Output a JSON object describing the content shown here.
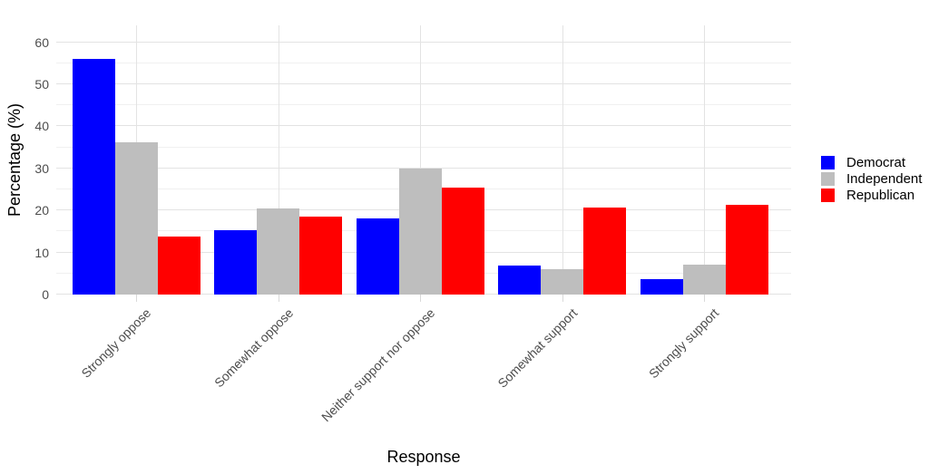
{
  "chart_data": {
    "type": "bar",
    "title": "",
    "xlabel": "Response",
    "ylabel": "Percentage (%)",
    "categories": [
      "Strongly oppose",
      "Somewhat oppose",
      "Neither support nor oppose",
      "Somewhat support",
      "Strongly support"
    ],
    "series": [
      {
        "name": "Democrat",
        "color": "#0000ff",
        "values": [
          56.1,
          15.3,
          18.0,
          6.9,
          3.7
        ]
      },
      {
        "name": "Independent",
        "color": "#bebebe",
        "values": [
          36.3,
          20.5,
          29.9,
          6.0,
          7.1
        ]
      },
      {
        "name": "Republican",
        "color": "#ff0000",
        "values": [
          13.7,
          18.6,
          25.5,
          20.7,
          21.4
        ]
      }
    ],
    "y_ticks": [
      0,
      10,
      20,
      30,
      40,
      50,
      60
    ],
    "y_minor_ticks": [
      5,
      15,
      25,
      35,
      45,
      55
    ],
    "ylim": [
      0,
      64
    ],
    "grid": "major+minor",
    "legend_position": "right"
  },
  "colors": {
    "background": "#ffffff",
    "grid_major": "#e3e3e3",
    "grid_minor": "#f0f0f0",
    "axis_text": "#4d4d4d",
    "axis_title": "#000000",
    "tick_mark": "#d9d9d9"
  }
}
